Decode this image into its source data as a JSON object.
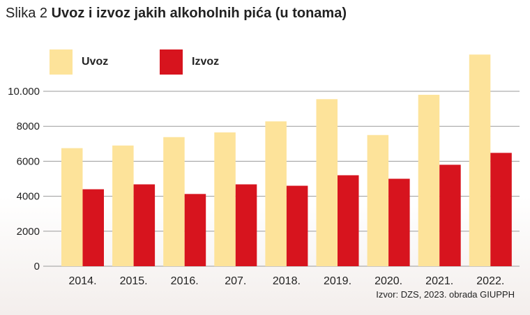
{
  "title": {
    "prefix": "Slika 2",
    "main": "Uvoz i izvoz jakih alkoholnih pića (u tonama)"
  },
  "source": "Izvor: DZS, 2023. obrada GIUPPH",
  "colors": {
    "uvoz": "#fde39a",
    "izvoz": "#d7141e",
    "grid": "#9a9a9a"
  },
  "chart_data": {
    "type": "bar",
    "title": "Uvoz i izvoz jakih alkoholnih pića (u tonama)",
    "categories": [
      "2014.",
      "2015.",
      "2016.",
      "207.",
      "2018.",
      "2019.",
      "2020.",
      "2021.",
      "2022."
    ],
    "series": [
      {
        "name": "Uvoz",
        "color": "#fde39a",
        "values": [
          6750,
          6900,
          7380,
          7650,
          8280,
          9550,
          7500,
          9800,
          12100
        ]
      },
      {
        "name": "Izvoz",
        "color": "#d7141e",
        "values": [
          4400,
          4680,
          4130,
          4680,
          4600,
          5200,
          5000,
          5800,
          6480
        ]
      }
    ],
    "yticks": [
      0,
      2000,
      4000,
      6000,
      8000,
      10000
    ],
    "ytick_labels": [
      "0",
      "2000",
      "4000",
      "6000",
      "8000",
      "10.000"
    ],
    "ylim": [
      0,
      12100
    ],
    "grid": true,
    "legend_position": "top-left"
  }
}
